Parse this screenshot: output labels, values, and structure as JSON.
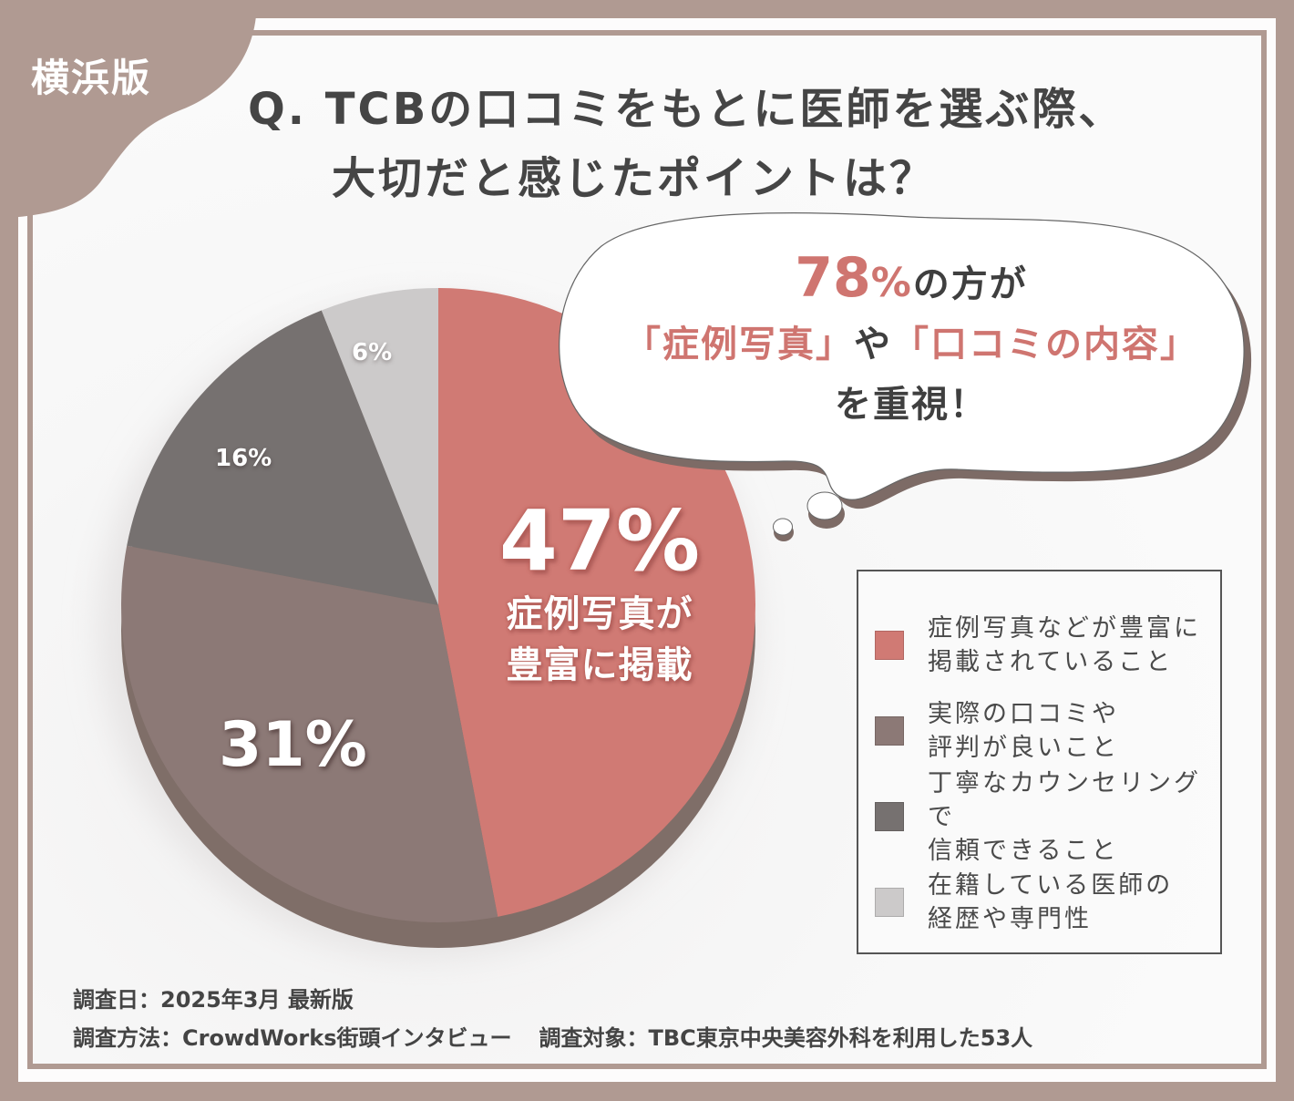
{
  "badge": {
    "region": "横浜版"
  },
  "title": {
    "line1": "Q. TCBの口コミをもとに医師を選ぶ際、",
    "line2": "大切だと感じたポイントは？"
  },
  "callout": {
    "pct": "78",
    "pct_sign": "%",
    "line1_suffix": "の方が",
    "line2_a": "「症例写真」",
    "line2_mid": "や",
    "line2_b": "「口コミの内容」",
    "line3": "を重視！"
  },
  "chart_data": {
    "type": "pie",
    "title": "Q. TCBの口コミをもとに医師を選ぶ際、大切だと感じたポイントは？",
    "start_angle": "12 o'clock, clockwise",
    "categories": [
      "症例写真などが豊富に掲載されていること",
      "実際の口コミや評判が良いこと",
      "丁寧なカウンセリングで信頼できること",
      "在籍している医師の経歴や専門性"
    ],
    "values": [
      47,
      31,
      16,
      6
    ],
    "unit": "%",
    "colors": [
      "#d07a74",
      "#8c7976",
      "#767170",
      "#cccaca"
    ],
    "data_labels": [
      "47%",
      "31%",
      "16%",
      "6%"
    ],
    "highlight_annotation": "症例写真が豊富に掲載",
    "legend_position": "right"
  },
  "pie": {
    "label_47": "47%",
    "label_47_sub1": "症例写真が",
    "label_47_sub2": "豊富に掲載",
    "label_31": "31%",
    "label_16": "16%",
    "label_6": "6%"
  },
  "legend": {
    "items": [
      {
        "label": "症例写真などが豊富に\n掲載されていること",
        "color": "#d07a74"
      },
      {
        "label": "実際の口コミや\n評判が良いこと",
        "color": "#8c7976"
      },
      {
        "label": "丁寧なカウンセリングで\n信頼できること",
        "color": "#767170"
      },
      {
        "label": "在籍している医師の\n経歴や専門性",
        "color": "#cccaca"
      }
    ]
  },
  "footer": {
    "date": "調査日：2025年3月 最新版",
    "method": "調査方法：CrowdWorks街頭インタビュー",
    "target": "調査対象：TBC東京中央美容外科を利用した53人"
  },
  "colors": {
    "frame": "#b09a92",
    "accent": "#cf7570",
    "text": "#454545",
    "pie_depth": "#7f6e68"
  }
}
